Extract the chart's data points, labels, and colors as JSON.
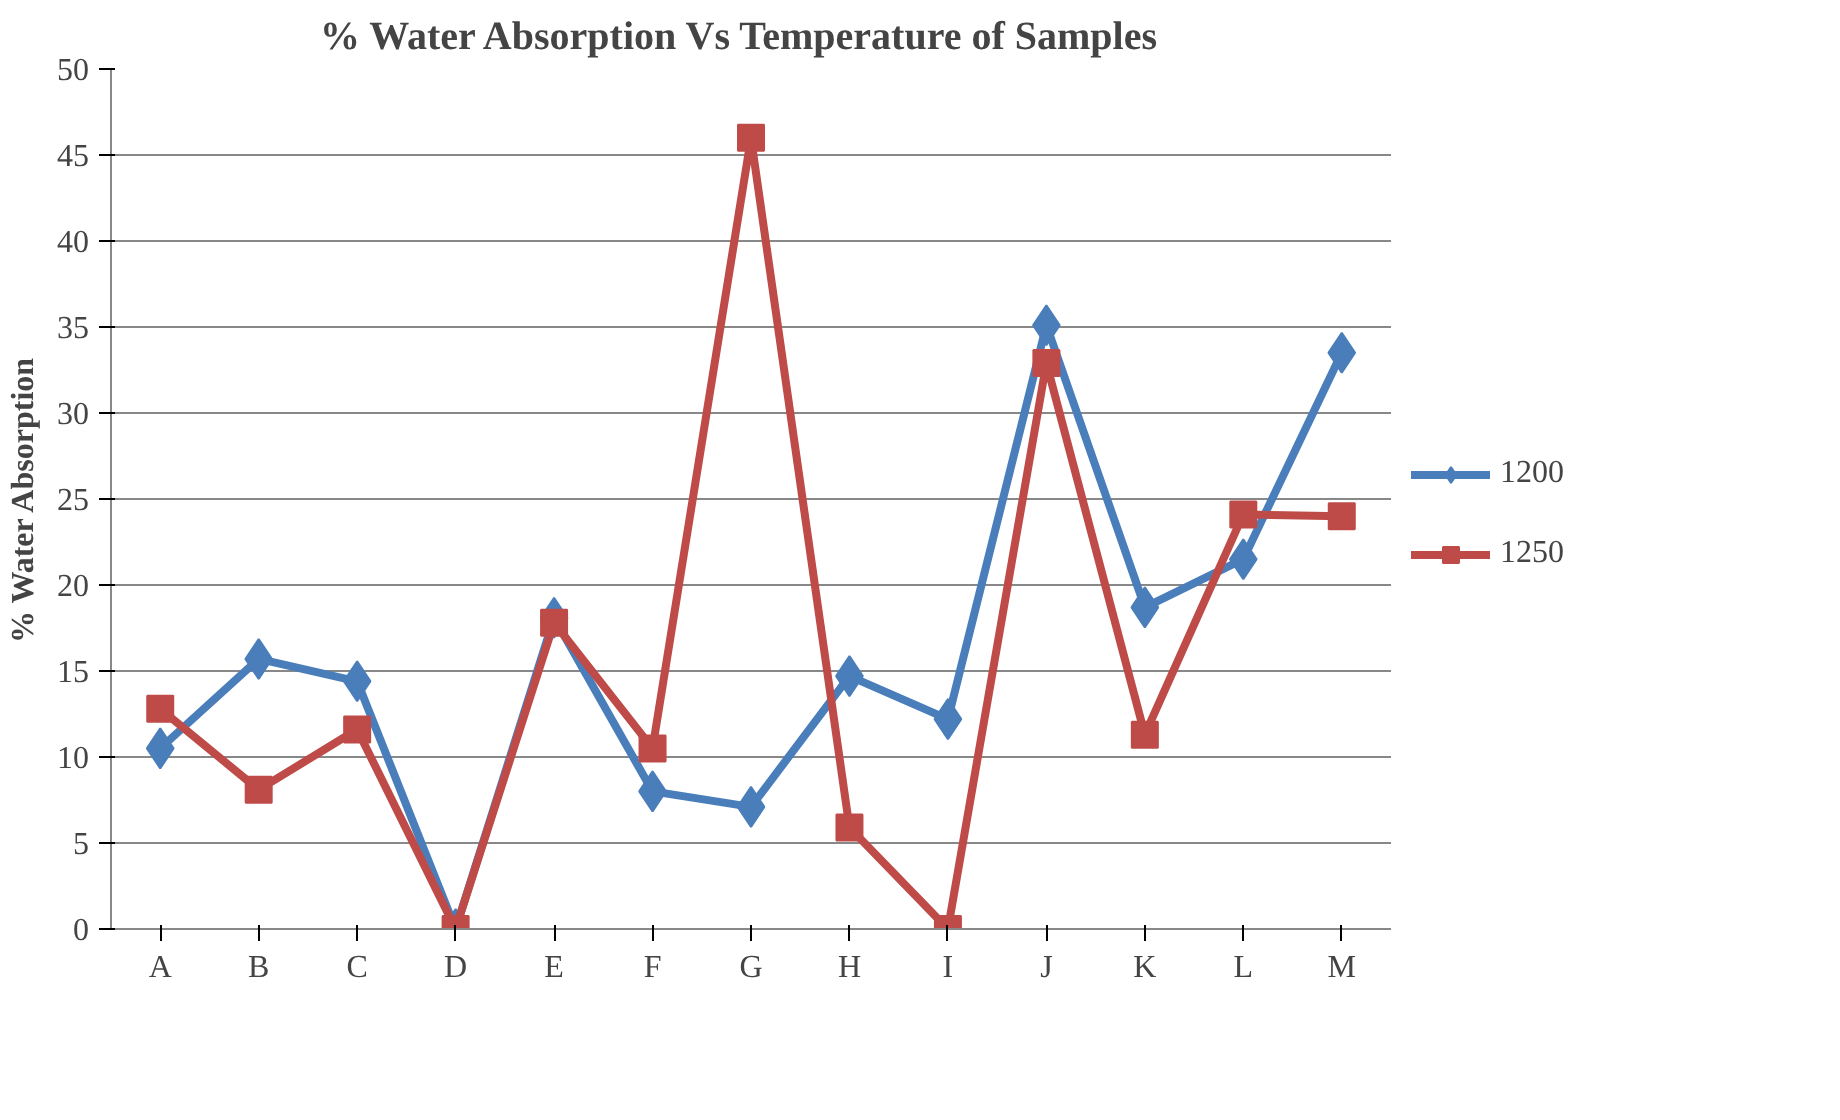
{
  "chart_data": {
    "type": "line",
    "title": "% Water Absorption  Vs Temperature  of Samples",
    "ylabel": "% Water Absorption",
    "categories": [
      "A",
      "B",
      "C",
      "D",
      "E",
      "F",
      "G",
      "H",
      "I",
      "J",
      "K",
      "L",
      "M"
    ],
    "series": [
      {
        "name": "1200",
        "color": "#4a7ebb",
        "marker": "diamond",
        "values": [
          10.5,
          15.7,
          14.4,
          0,
          18.1,
          8.0,
          7.1,
          14.7,
          12.2,
          35.1,
          18.7,
          21.5,
          33.5
        ]
      },
      {
        "name": "1250",
        "color": "#be4b48",
        "marker": "square",
        "values": [
          12.8,
          8.1,
          11.6,
          0,
          17.8,
          10.5,
          46.0,
          5.9,
          0,
          32.9,
          11.3,
          24.1,
          24.0
        ]
      }
    ],
    "ylim": [
      0,
      50
    ],
    "yticks": [
      0,
      5,
      10,
      15,
      20,
      25,
      30,
      35,
      40,
      45,
      50
    ],
    "grid": "y",
    "legend": "right",
    "line_style": "solid"
  }
}
